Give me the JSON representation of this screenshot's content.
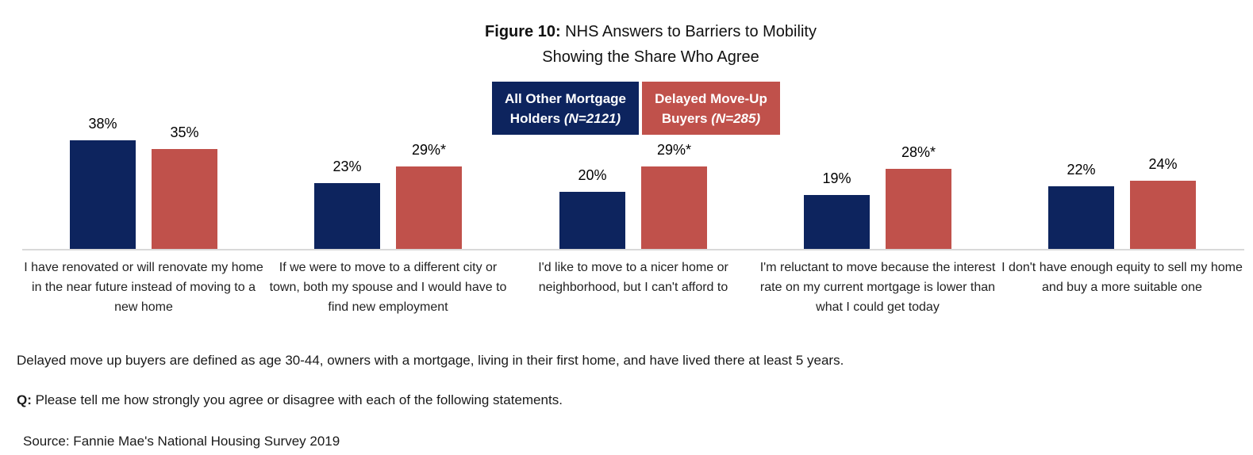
{
  "title": {
    "prefix": "Figure 10:",
    "rest": " NHS Answers to Barriers to Mobility",
    "line2": "Showing the Share Who Agree"
  },
  "legend": {
    "items": [
      {
        "name": "All Other Mortgage Holders",
        "n": "(N=2121)",
        "color": "#0d245e"
      },
      {
        "name": "Delayed Move-Up Buyers",
        "n": "(N=285)",
        "color": "#c0514b"
      }
    ]
  },
  "chart_data": {
    "type": "bar",
    "title": "Figure 10: NHS Answers to Barriers to Mobility Showing the Share Who Agree",
    "categories": [
      "I have renovated or will renovate my home in the near future instead of moving to a new home",
      "If we were to move to a different city or town, both my spouse and I would have to find new employment",
      "I'd like to move to a nicer home or neighborhood, but I can't afford to",
      "I'm reluctant to move because the interest rate on my current mortgage is lower than what I could get today",
      "I don't have enough equity to sell my home and buy a more suitable one"
    ],
    "series": [
      {
        "name": "All Other Mortgage Holders (N=2121)",
        "color": "#0d245e",
        "values": [
          38,
          23,
          20,
          19,
          22
        ],
        "labels": [
          "38%",
          "23%",
          "20%",
          "19%",
          "22%"
        ]
      },
      {
        "name": "Delayed Move-Up Buyers (N=285)",
        "color": "#c0514b",
        "values": [
          35,
          29,
          29,
          28,
          24
        ],
        "labels": [
          "35%",
          "29%*",
          "29%*",
          "28%*",
          "24%"
        ]
      }
    ],
    "ylim": [
      0,
      40
    ],
    "value_unit": "%",
    "grid": false,
    "legend_position": "top-center",
    "axis_line_color": "#d9d9d9"
  },
  "footnotes": {
    "definition": "Delayed move up buyers are defined as age 30-44, owners with a mortgage, living in their first home, and have lived there at least 5 years.",
    "question_prefix": "Q:",
    "question": " Please tell me how strongly you agree or disagree with each of the following statements.",
    "source": "Source: Fannie Mae's National Housing Survey 2019"
  }
}
